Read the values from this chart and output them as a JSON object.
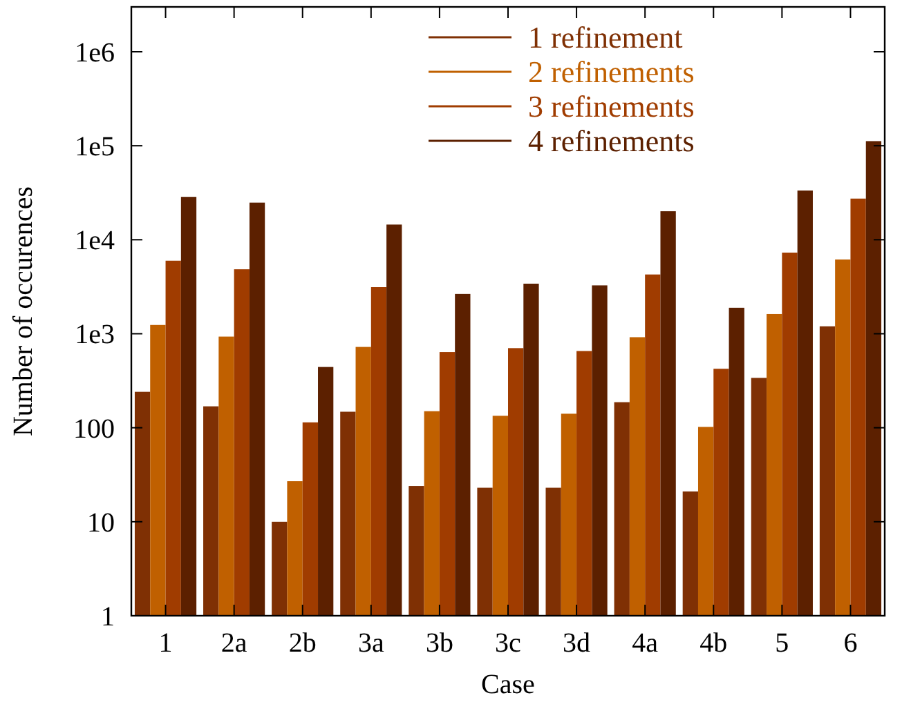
{
  "chart_data": {
    "type": "bar",
    "xlabel": "Case",
    "ylabel": "Number of occurences",
    "categories": [
      "1",
      "2a",
      "2b",
      "3a",
      "3b",
      "3c",
      "3d",
      "4a",
      "4b",
      "5",
      "6"
    ],
    "series": [
      {
        "name": "1 refinement",
        "color": "#7f3004",
        "values": [
          241,
          169,
          10,
          148,
          24,
          23,
          23,
          187,
          21,
          339,
          1200
        ]
      },
      {
        "name": "2 refinements",
        "color": "#c06000",
        "values": [
          1240,
          933,
          27,
          724,
          150,
          134,
          141,
          919,
          102,
          1620,
          6170
        ]
      },
      {
        "name": "3 refinements",
        "color": "#a03c00",
        "values": [
          5980,
          4850,
          114,
          3130,
          638,
          703,
          655,
          4270,
          424,
          7300,
          27400
        ]
      },
      {
        "name": "4 refinements",
        "color": "#5c2000",
        "values": [
          28600,
          24800,
          443,
          14500,
          2650,
          3410,
          3270,
          20100,
          1890,
          33400,
          112000
        ]
      }
    ],
    "log": "y",
    "ylim": [
      1,
      3000000
    ],
    "yticks": [
      1,
      10,
      100,
      {
        "value": 1000,
        "label": "1e3"
      },
      {
        "value": 10000,
        "label": "1e4"
      },
      {
        "value": 100000,
        "label": "1e5"
      },
      {
        "value": 1000000,
        "label": "1e6"
      }
    ],
    "legend": "top right",
    "grid": false
  }
}
